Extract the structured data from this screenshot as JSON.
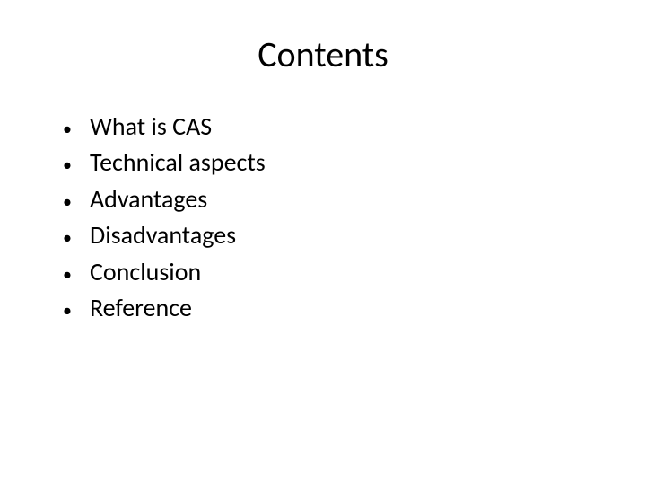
{
  "slide": {
    "title": "Contents",
    "title_fontsize": 40,
    "title_color": "#000000",
    "background_color": "#ffffff",
    "bullet_items": [
      {
        "text": "What is CAS"
      },
      {
        "text": "Technical aspects"
      },
      {
        "text": "Advantages"
      },
      {
        "text": "Disadvantages"
      },
      {
        "text": "Conclusion"
      },
      {
        "text": "Reference"
      }
    ],
    "bullet_fontsize": 28,
    "bullet_color": "#000000",
    "bullet_marker": "•"
  }
}
